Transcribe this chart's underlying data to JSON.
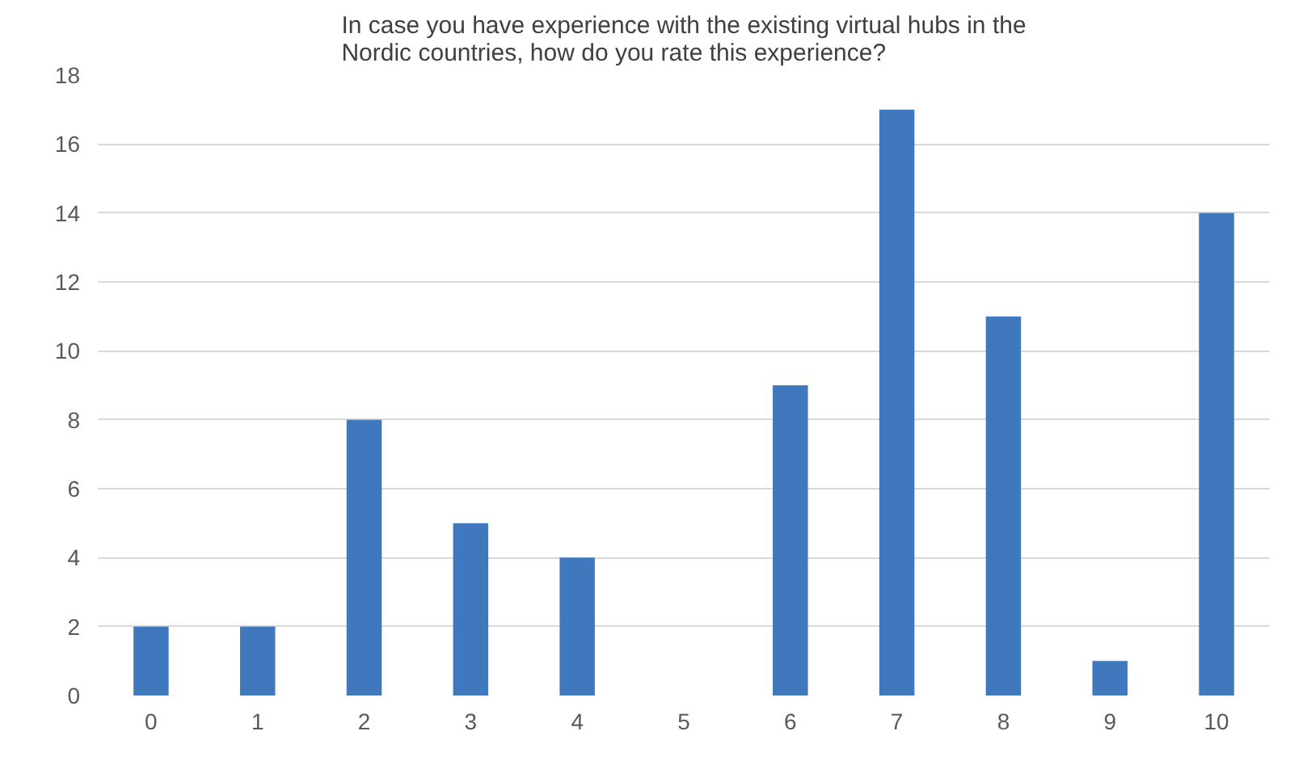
{
  "chart_data": {
    "type": "bar",
    "title": "In case you have experience with the existing virtual hubs in the Nordic countries, how do you rate this experience?",
    "categories": [
      "0",
      "1",
      "2",
      "3",
      "4",
      "5",
      "6",
      "7",
      "8",
      "9",
      "10"
    ],
    "values": [
      2,
      2,
      8,
      5,
      4,
      0,
      9,
      17,
      11,
      1,
      14
    ],
    "color": "#4078be",
    "ylim": [
      0,
      18
    ],
    "yticks": [
      0,
      2,
      4,
      6,
      8,
      10,
      12,
      14,
      16,
      18
    ],
    "grid": "y"
  }
}
